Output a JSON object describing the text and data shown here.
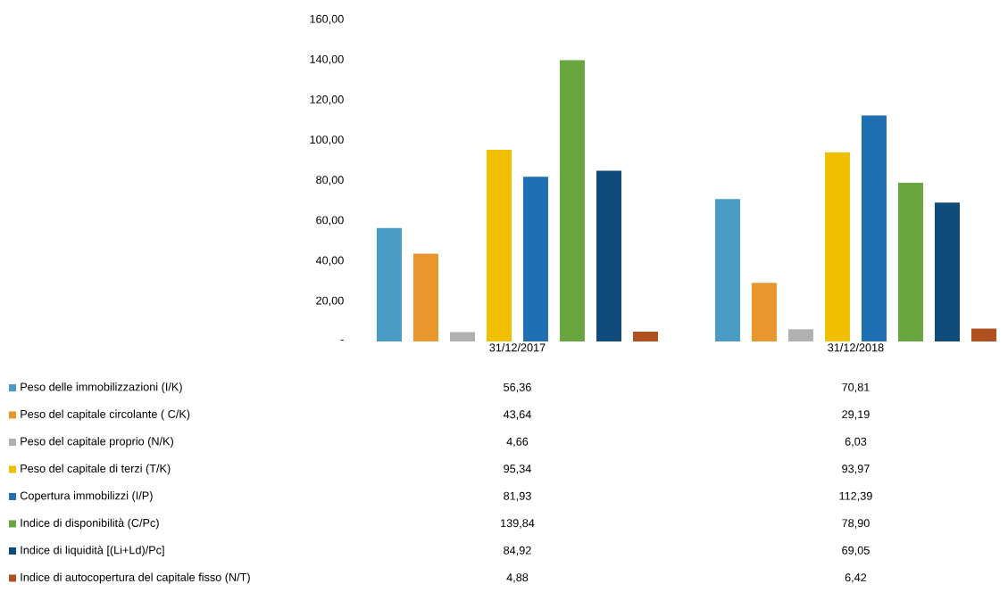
{
  "chart_data": {
    "type": "bar",
    "categories": [
      "31/12/2017",
      "31/12/2018"
    ],
    "series": [
      {
        "name": "Peso delle immobilizzazioni  (I/K)",
        "color": "#4a9cc4",
        "values": [
          56.36,
          70.81
        ],
        "value_labels": [
          "56,36",
          "70,81"
        ]
      },
      {
        "name": "Peso del capitale circolante ( C/K)",
        "color": "#e8962e",
        "values": [
          43.64,
          29.19
        ],
        "value_labels": [
          "43,64",
          "29,19"
        ]
      },
      {
        "name": "Peso del capitale proprio (N/K)",
        "color": "#b0b0b0",
        "values": [
          4.66,
          6.03
        ],
        "value_labels": [
          "4,66",
          "6,03"
        ]
      },
      {
        "name": "Peso del capitale di terzi (T/K)",
        "color": "#f0c000",
        "values": [
          95.34,
          93.97
        ],
        "value_labels": [
          "95,34",
          "93,97"
        ]
      },
      {
        "name": "Copertura immobilizzi (I/P)",
        "color": "#1f6fb2",
        "values": [
          81.93,
          112.39
        ],
        "value_labels": [
          "81,93",
          "112,39"
        ]
      },
      {
        "name": "Indice di disponibilità (C/Pc)",
        "color": "#6aa640",
        "values": [
          139.84,
          78.9
        ],
        "value_labels": [
          "139,84",
          "78,90"
        ]
      },
      {
        "name": "Indice di liquidità [(Li+Ld)/Pc]",
        "color": "#0e4a7a",
        "values": [
          84.92,
          69.05
        ],
        "value_labels": [
          "84,92",
          "69,05"
        ]
      },
      {
        "name": "Indice di autocopertura del capitale fisso (N/T)",
        "color": "#b0501e",
        "values": [
          4.88,
          6.42
        ],
        "value_labels": [
          "4,88",
          "6,42"
        ]
      }
    ],
    "ylim": [
      0,
      160
    ],
    "yticks": [
      {
        "value": 0,
        "label": "-"
      },
      {
        "value": 20,
        "label": "20,00"
      },
      {
        "value": 40,
        "label": "40,00"
      },
      {
        "value": 60,
        "label": "60,00"
      },
      {
        "value": 80,
        "label": "80,00"
      },
      {
        "value": 100,
        "label": "100,00"
      },
      {
        "value": 120,
        "label": "120,00"
      },
      {
        "value": 140,
        "label": "140,00"
      },
      {
        "value": 160,
        "label": "160,00"
      }
    ],
    "legend": "bottom left"
  }
}
